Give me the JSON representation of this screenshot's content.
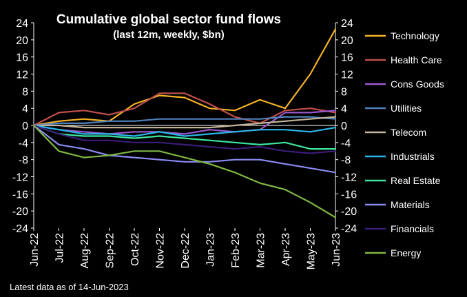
{
  "chart_data": {
    "type": "line",
    "title": "Cumulative global sector fund flows",
    "subtitle": "(last 12m, weekly, $bn)",
    "footnote": "Latest data as of 14-Jun-2023",
    "ylim": [
      -24,
      24
    ],
    "yticks": [
      24,
      20,
      16,
      12,
      8,
      4,
      0,
      -4,
      -8,
      -12,
      -16,
      -20,
      -24
    ],
    "x": [
      "Jun-22",
      "Jul-22",
      "Aug-22",
      "Sep-22",
      "Oct-22",
      "Nov-22",
      "Dec-22",
      "Jan-23",
      "Feb-23",
      "Mar-23",
      "Apr-23",
      "May-23",
      "Jun-23"
    ],
    "series": [
      {
        "name": "Technology",
        "color": "#f5b324",
        "values": [
          0,
          1,
          1.5,
          1,
          5,
          7,
          6.5,
          4,
          3.5,
          6,
          4,
          12,
          22.5
        ]
      },
      {
        "name": "Health Care",
        "color": "#c0504d",
        "values": [
          0,
          3,
          3.5,
          2.5,
          4,
          7.5,
          7.5,
          5,
          2,
          0.5,
          3.5,
          4,
          3
        ]
      },
      {
        "name": "Cons Goods",
        "color": "#9b59d0",
        "values": [
          0,
          -1,
          -1.5,
          -2,
          -1.5,
          -1.5,
          -2,
          -1,
          -1.5,
          -1,
          3,
          3,
          3.5
        ]
      },
      {
        "name": "Utilities",
        "color": "#4f81bd",
        "values": [
          0,
          0.5,
          0.5,
          1,
          1,
          1.5,
          1.5,
          1.5,
          1.5,
          1.5,
          2,
          2,
          1.5
        ]
      },
      {
        "name": "Telecom",
        "color": "#c4b59a",
        "values": [
          0,
          0,
          -0.5,
          -0.5,
          -0.5,
          -0.5,
          -0.5,
          -0.5,
          0,
          0.5,
          1,
          1.5,
          2
        ]
      },
      {
        "name": "Industrials",
        "color": "#2ab7e8",
        "values": [
          0,
          -1,
          -2,
          -2,
          -2.5,
          -1.5,
          -2.5,
          -2,
          -1.5,
          -1,
          -1,
          -1.5,
          -0.5
        ]
      },
      {
        "name": "Real Estate",
        "color": "#3ee6a0",
        "values": [
          0,
          -2,
          -2.5,
          -2.5,
          -3,
          -2.5,
          -3,
          -3.5,
          -4,
          -4.5,
          -4,
          -5.5,
          -5.5
        ]
      },
      {
        "name": "Materials",
        "color": "#8a8cf2",
        "values": [
          0,
          -4.5,
          -5.5,
          -7,
          -7.5,
          -8,
          -8.5,
          -8.5,
          -8,
          -8,
          -9,
          -10,
          -11
        ]
      },
      {
        "name": "Financials",
        "color": "#3b1d78",
        "values": [
          0,
          -2,
          -3.5,
          -3.5,
          -4,
          -4,
          -4.5,
          -5,
          -5.5,
          -5,
          -6,
          -6.5,
          -6
        ]
      },
      {
        "name": "Energy",
        "color": "#7fb842",
        "values": [
          0,
          -6,
          -7.5,
          -7,
          -6,
          -6,
          -7.5,
          -9,
          -11,
          -13.5,
          -15,
          -18,
          -21.5
        ]
      }
    ]
  }
}
